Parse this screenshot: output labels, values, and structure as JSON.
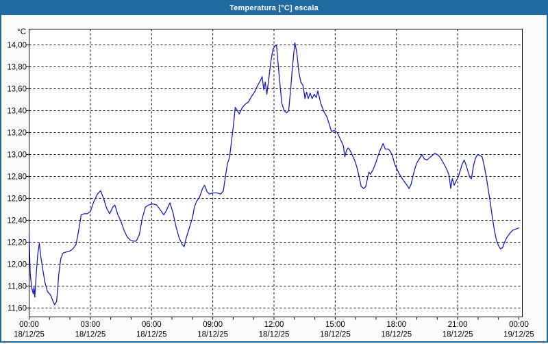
{
  "window": {
    "title": "Temperatura [°C] escala"
  },
  "colors": {
    "titlebar": "#1f6ba2",
    "window_border": "#20689f",
    "background": "#fbfcfa",
    "plot_background": "#ffffff",
    "plot_border": "#000000",
    "grid": "#000000",
    "text": "#000000",
    "line": "#1a1ac0"
  },
  "chart_data": {
    "type": "line",
    "title": "Temperatura [°C] escala",
    "y_unit_label": "°C",
    "xlabel": "",
    "ylabel": "°C",
    "grid": "dashed, on",
    "legend": "none",
    "ylim": [
      11.6,
      14.0
    ],
    "x_hours_range": [
      0,
      24
    ],
    "minor_x_tick_every_hours": 1,
    "y_ticks": [
      {
        "label": "14,00",
        "value": 14.0
      },
      {
        "label": "13,80",
        "value": 13.8
      },
      {
        "label": "13,60",
        "value": 13.6
      },
      {
        "label": "13,40",
        "value": 13.4
      },
      {
        "label": "13,20",
        "value": 13.2
      },
      {
        "label": "13,00",
        "value": 13.0
      },
      {
        "label": "12,80",
        "value": 12.8
      },
      {
        "label": "12,60",
        "value": 12.6
      },
      {
        "label": "12,40",
        "value": 12.4
      },
      {
        "label": "12,20",
        "value": 12.2
      },
      {
        "label": "12,00",
        "value": 12.0
      },
      {
        "label": "11,80",
        "value": 11.8
      },
      {
        "label": "11,60",
        "value": 11.6
      }
    ],
    "x_ticks": [
      {
        "time": "00:00",
        "date": "18/12/25",
        "hour": 0
      },
      {
        "time": "03:00",
        "date": "18/12/25",
        "hour": 3
      },
      {
        "time": "06:00",
        "date": "18/12/25",
        "hour": 6
      },
      {
        "time": "09:00",
        "date": "18/12/25",
        "hour": 9
      },
      {
        "time": "12:00",
        "date": "18/12/25",
        "hour": 12
      },
      {
        "time": "15:00",
        "date": "18/12/25",
        "hour": 15
      },
      {
        "time": "18:00",
        "date": "18/12/25",
        "hour": 18
      },
      {
        "time": "21:00",
        "date": "18/12/25",
        "hour": 21
      },
      {
        "time": "00:00",
        "date": "19/12/25",
        "hour": 24
      }
    ],
    "series": [
      {
        "name": "Temperatura",
        "color": "#1a1ac0",
        "points_hour_degC": [
          [
            0,
            12.27
          ],
          [
            0.03,
            12.05
          ],
          [
            0.06,
            11.9
          ],
          [
            0.13,
            11.78
          ],
          [
            0.2,
            11.73
          ],
          [
            0.24,
            11.79
          ],
          [
            0.28,
            11.7
          ],
          [
            0.35,
            11.91
          ],
          [
            0.42,
            12.08
          ],
          [
            0.5,
            12.19
          ],
          [
            0.58,
            12.06
          ],
          [
            0.67,
            11.95
          ],
          [
            0.78,
            11.83
          ],
          [
            0.9,
            11.75
          ],
          [
            1.05,
            11.72
          ],
          [
            1.15,
            11.67
          ],
          [
            1.25,
            11.63
          ],
          [
            1.35,
            11.66
          ],
          [
            1.45,
            11.9
          ],
          [
            1.55,
            12.05
          ],
          [
            1.65,
            12.1
          ],
          [
            1.8,
            12.11
          ],
          [
            2,
            12.12
          ],
          [
            2.15,
            12.14
          ],
          [
            2.3,
            12.18
          ],
          [
            2.45,
            12.33
          ],
          [
            2.55,
            12.45
          ],
          [
            2.7,
            12.46
          ],
          [
            2.85,
            12.46
          ],
          [
            3,
            12.48
          ],
          [
            3.15,
            12.56
          ],
          [
            3.35,
            12.64
          ],
          [
            3.5,
            12.67
          ],
          [
            3.65,
            12.6
          ],
          [
            3.8,
            12.51
          ],
          [
            3.95,
            12.46
          ],
          [
            4.1,
            12.52
          ],
          [
            4.2,
            12.54
          ],
          [
            4.35,
            12.45
          ],
          [
            4.5,
            12.39
          ],
          [
            4.65,
            12.31
          ],
          [
            4.8,
            12.25
          ],
          [
            4.95,
            12.22
          ],
          [
            5.1,
            12.21
          ],
          [
            5.25,
            12.21
          ],
          [
            5.4,
            12.27
          ],
          [
            5.55,
            12.42
          ],
          [
            5.7,
            12.52
          ],
          [
            5.85,
            12.54
          ],
          [
            6.05,
            12.55
          ],
          [
            6.25,
            12.54
          ],
          [
            6.45,
            12.49
          ],
          [
            6.6,
            12.45
          ],
          [
            6.7,
            12.48
          ],
          [
            6.8,
            12.52
          ],
          [
            6.9,
            12.56
          ],
          [
            7.05,
            12.47
          ],
          [
            7.2,
            12.34
          ],
          [
            7.35,
            12.24
          ],
          [
            7.5,
            12.18
          ],
          [
            7.6,
            12.16
          ],
          [
            7.7,
            12.24
          ],
          [
            7.8,
            12.3
          ],
          [
            7.9,
            12.36
          ],
          [
            8,
            12.42
          ],
          [
            8.1,
            12.52
          ],
          [
            8.2,
            12.57
          ],
          [
            8.35,
            12.61
          ],
          [
            8.5,
            12.69
          ],
          [
            8.6,
            12.72
          ],
          [
            8.72,
            12.66
          ],
          [
            8.85,
            12.64
          ],
          [
            9,
            12.65
          ],
          [
            9.2,
            12.65
          ],
          [
            9.4,
            12.64
          ],
          [
            9.52,
            12.67
          ],
          [
            9.62,
            12.8
          ],
          [
            9.72,
            12.92
          ],
          [
            9.82,
            12.97
          ],
          [
            9.92,
            13.12
          ],
          [
            10.02,
            13.28
          ],
          [
            10.1,
            13.43
          ],
          [
            10.2,
            13.4
          ],
          [
            10.3,
            13.37
          ],
          [
            10.45,
            13.43
          ],
          [
            10.6,
            13.46
          ],
          [
            10.75,
            13.48
          ],
          [
            10.9,
            13.53
          ],
          [
            11.05,
            13.57
          ],
          [
            11.2,
            13.63
          ],
          [
            11.35,
            13.68
          ],
          [
            11.42,
            13.71
          ],
          [
            11.5,
            13.59
          ],
          [
            11.57,
            13.66
          ],
          [
            11.65,
            13.55
          ],
          [
            11.75,
            13.7
          ],
          [
            11.85,
            13.85
          ],
          [
            11.95,
            13.96
          ],
          [
            12.05,
            13.99
          ],
          [
            12.12,
            14.0
          ],
          [
            12.25,
            13.73
          ],
          [
            12.38,
            13.47
          ],
          [
            12.5,
            13.4
          ],
          [
            12.62,
            13.38
          ],
          [
            12.72,
            13.4
          ],
          [
            12.82,
            13.6
          ],
          [
            12.92,
            13.83
          ],
          [
            13.02,
            14.02
          ],
          [
            13.12,
            13.93
          ],
          [
            13.22,
            13.75
          ],
          [
            13.32,
            13.66
          ],
          [
            13.42,
            13.63
          ],
          [
            13.52,
            13.51
          ],
          [
            13.6,
            13.57
          ],
          [
            13.68,
            13.51
          ],
          [
            13.77,
            13.56
          ],
          [
            13.87,
            13.51
          ],
          [
            13.97,
            13.55
          ],
          [
            14.07,
            13.52
          ],
          [
            14.15,
            13.58
          ],
          [
            14.3,
            13.46
          ],
          [
            14.45,
            13.39
          ],
          [
            14.6,
            13.34
          ],
          [
            14.72,
            13.27
          ],
          [
            14.82,
            13.21
          ],
          [
            14.95,
            13.22
          ],
          [
            15.1,
            13.2
          ],
          [
            15.2,
            13.16
          ],
          [
            15.3,
            13.12
          ],
          [
            15.4,
            13.08
          ],
          [
            15.47,
            12.98
          ],
          [
            15.56,
            13.04
          ],
          [
            15.64,
            13.06
          ],
          [
            15.72,
            13.04
          ],
          [
            15.85,
            12.99
          ],
          [
            15.97,
            12.94
          ],
          [
            16.07,
            12.88
          ],
          [
            16.17,
            12.8
          ],
          [
            16.27,
            12.71
          ],
          [
            16.4,
            12.69
          ],
          [
            16.5,
            12.71
          ],
          [
            16.58,
            12.78
          ],
          [
            16.65,
            12.84
          ],
          [
            16.72,
            12.82
          ],
          [
            16.82,
            12.85
          ],
          [
            16.92,
            12.89
          ],
          [
            17.02,
            12.94
          ],
          [
            17.12,
            13.0
          ],
          [
            17.25,
            13.06
          ],
          [
            17.35,
            13.1
          ],
          [
            17.45,
            13.05
          ],
          [
            17.6,
            13.05
          ],
          [
            17.7,
            13.03
          ],
          [
            17.8,
            12.99
          ],
          [
            17.92,
            12.91
          ],
          [
            18.02,
            12.87
          ],
          [
            18.12,
            12.83
          ],
          [
            18.25,
            12.79
          ],
          [
            18.4,
            12.75
          ],
          [
            18.52,
            12.72
          ],
          [
            18.62,
            12.69
          ],
          [
            18.72,
            12.73
          ],
          [
            18.82,
            12.81
          ],
          [
            18.92,
            12.88
          ],
          [
            19.02,
            12.93
          ],
          [
            19.12,
            12.96
          ],
          [
            19.25,
            13.0
          ],
          [
            19.37,
            12.96
          ],
          [
            19.5,
            12.95
          ],
          [
            19.62,
            12.97
          ],
          [
            19.75,
            12.99
          ],
          [
            19.88,
            13.01
          ],
          [
            20,
            13.0
          ],
          [
            20.12,
            12.98
          ],
          [
            20.25,
            12.94
          ],
          [
            20.4,
            12.89
          ],
          [
            20.5,
            12.85
          ],
          [
            20.58,
            12.81
          ],
          [
            20.66,
            12.69
          ],
          [
            20.74,
            12.78
          ],
          [
            20.83,
            12.72
          ],
          [
            20.93,
            12.76
          ],
          [
            21.02,
            12.79
          ],
          [
            21.12,
            12.85
          ],
          [
            21.22,
            12.91
          ],
          [
            21.32,
            12.95
          ],
          [
            21.42,
            12.9
          ],
          [
            21.5,
            12.85
          ],
          [
            21.6,
            12.79
          ],
          [
            21.68,
            12.78
          ],
          [
            21.78,
            12.9
          ],
          [
            21.88,
            12.97
          ],
          [
            21.98,
            13.0
          ],
          [
            22.1,
            12.99
          ],
          [
            22.2,
            12.98
          ],
          [
            22.3,
            12.9
          ],
          [
            22.4,
            12.8
          ],
          [
            22.5,
            12.68
          ],
          [
            22.6,
            12.56
          ],
          [
            22.7,
            12.43
          ],
          [
            22.8,
            12.31
          ],
          [
            22.9,
            12.22
          ],
          [
            23,
            12.17
          ],
          [
            23.1,
            12.14
          ],
          [
            23.2,
            12.15
          ],
          [
            23.3,
            12.2
          ],
          [
            23.4,
            12.24
          ],
          [
            23.55,
            12.28
          ],
          [
            23.7,
            12.31
          ],
          [
            23.85,
            12.32
          ],
          [
            24,
            12.33
          ]
        ]
      }
    ]
  }
}
